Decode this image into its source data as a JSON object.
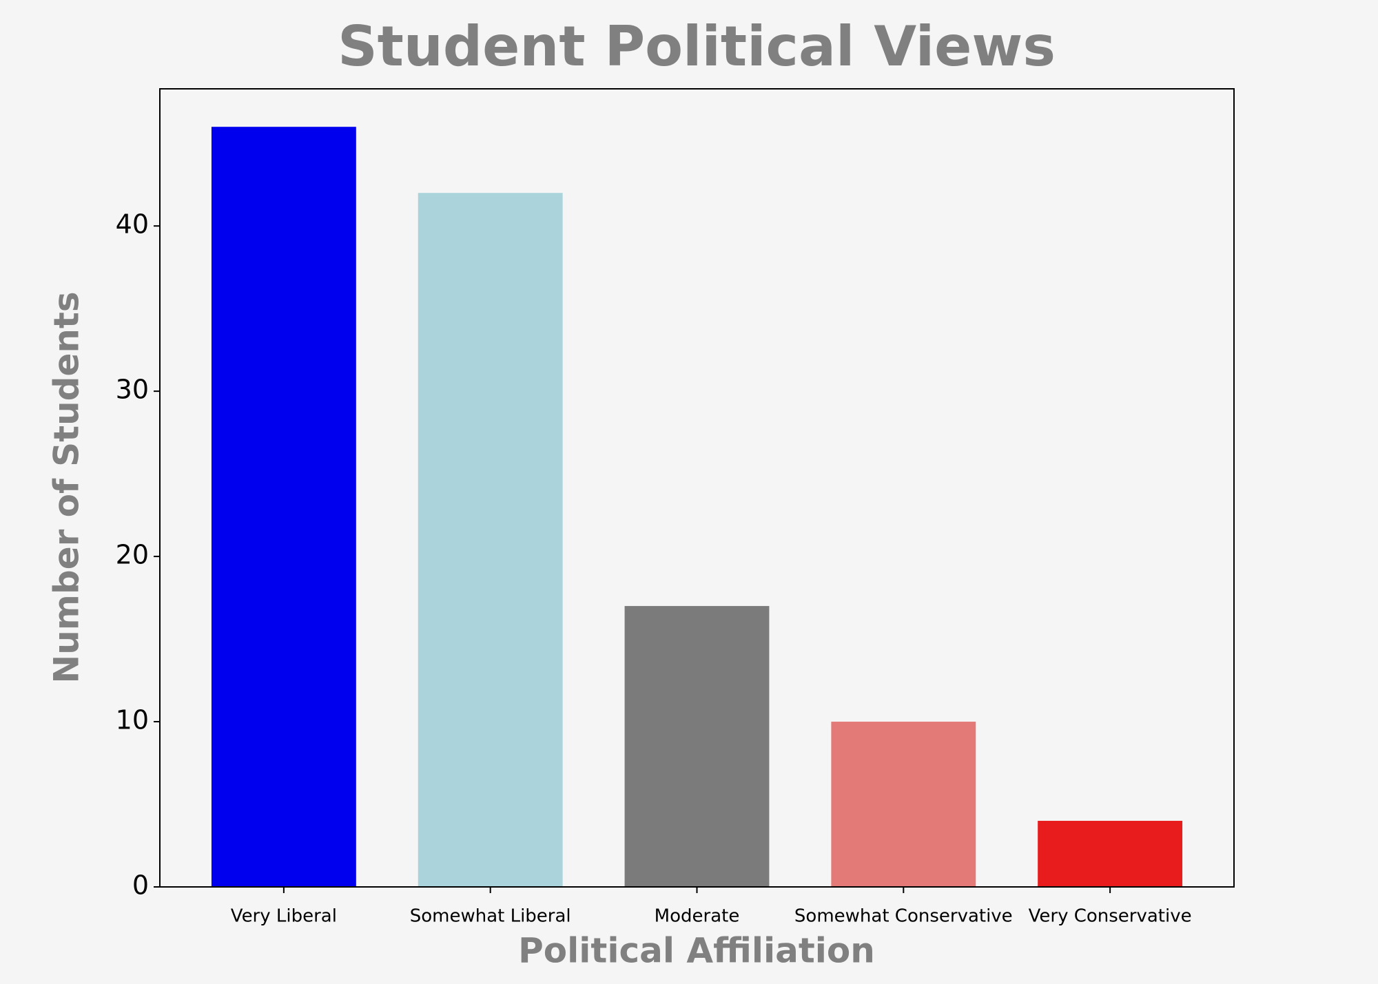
{
  "chart_data": {
    "type": "bar",
    "title": "Student Political Views",
    "x_label": "Political Affiliation",
    "y_label": "Number of Students",
    "categories": [
      "Very Liberal",
      "Somewhat Liberal",
      "Moderate",
      "Somewhat Conservative",
      "Very Conservative"
    ],
    "values": [
      46,
      42,
      17,
      10,
      4
    ],
    "colors": [
      "#0000ee",
      "#aad3dc",
      "#7b7b7b",
      "#e47a78",
      "#e81c1c"
    ],
    "ylim": [
      0,
      48.3
    ],
    "yticks": [
      0,
      10,
      20,
      30,
      40
    ],
    "grid": false
  }
}
